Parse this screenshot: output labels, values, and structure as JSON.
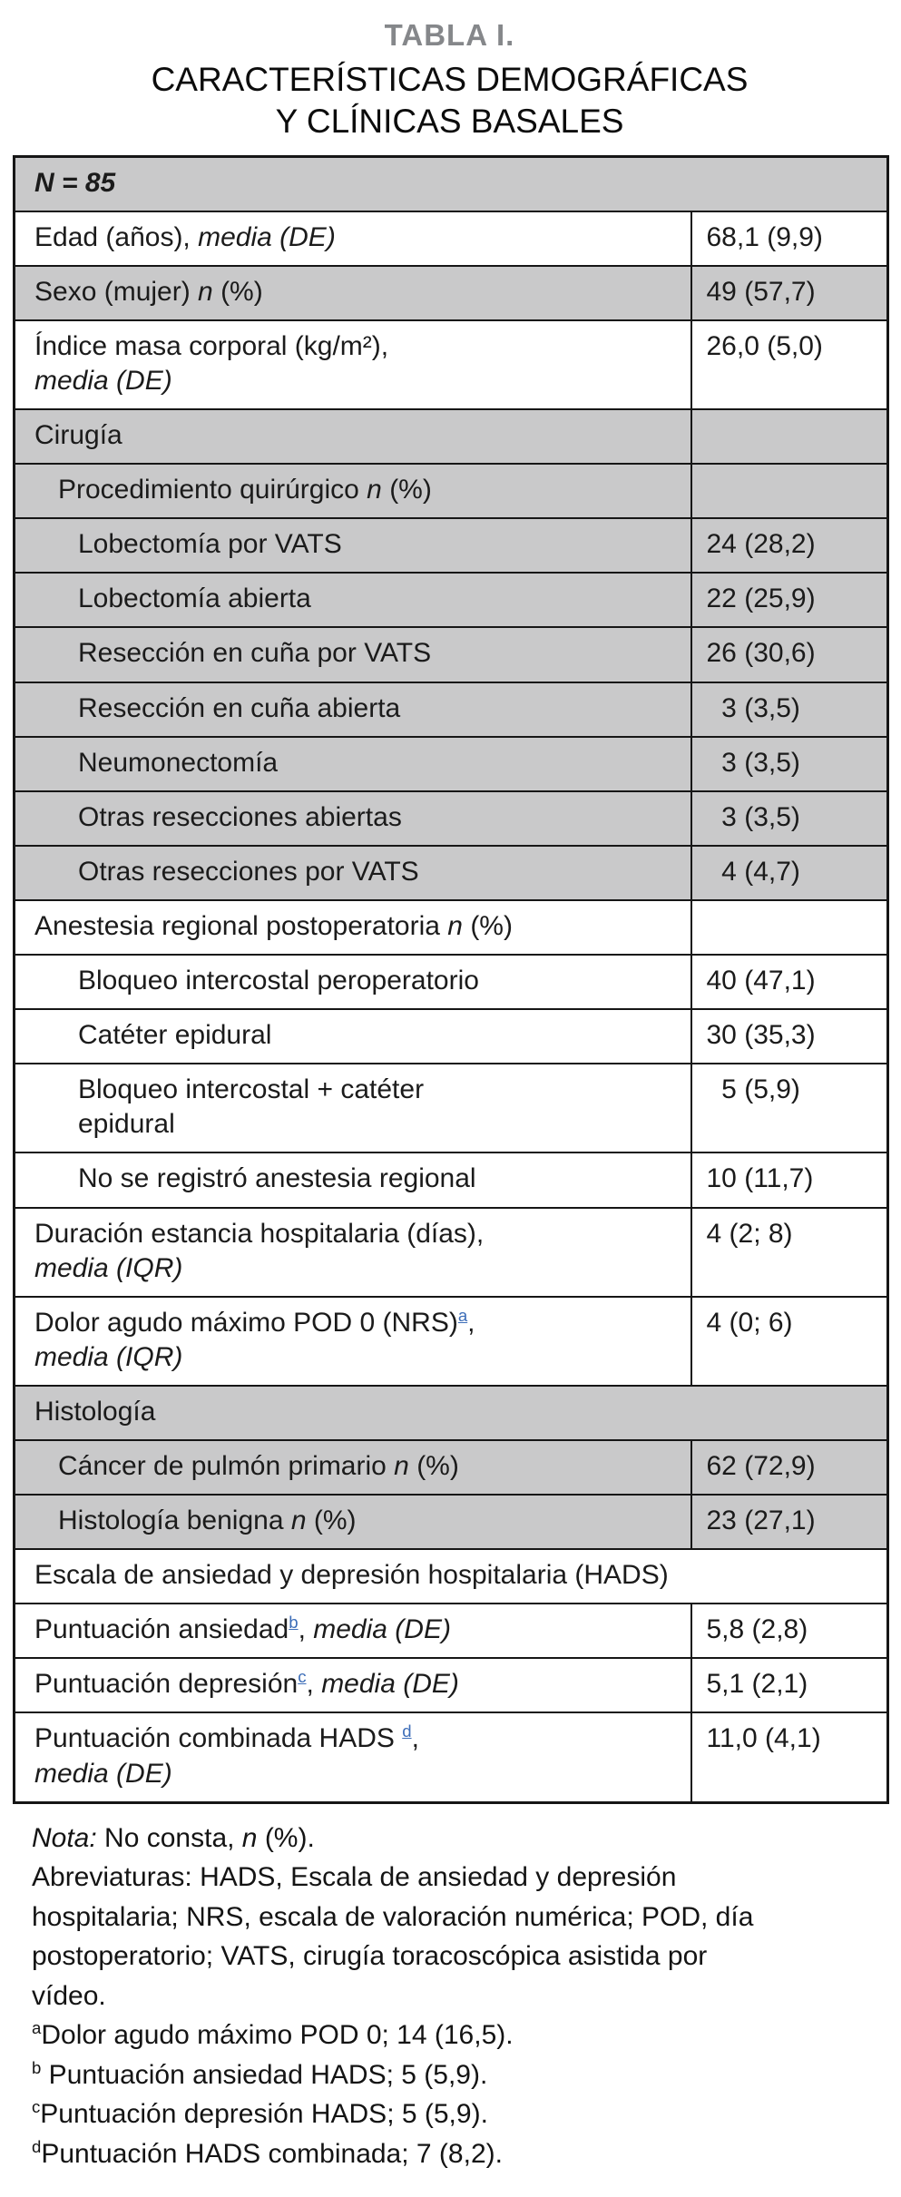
{
  "header": {
    "table_label": "TABLA I.",
    "title_line1": "CARACTERÍSTICAS DEMOGRÁFICAS",
    "title_line2": "Y CLÍNICAS BASALES"
  },
  "colors": {
    "row_gray": "#c9c9ca",
    "border_black": "#161616",
    "title_gray": "#85878a",
    "footnote_link_blue": "#3c6db8"
  },
  "table": {
    "rows": [
      {
        "bg": "gray",
        "indent": 0,
        "colspan": true,
        "label": [
          {
            "t": "N = 85",
            "b": true,
            "i": true
          }
        ]
      },
      {
        "bg": "white",
        "indent": 0,
        "label": [
          {
            "t": "Edad (años), "
          },
          {
            "t": "media (DE)",
            "i": true
          }
        ],
        "value": "68,1 (9,9)"
      },
      {
        "bg": "gray",
        "indent": 0,
        "label": [
          {
            "t": "Sexo (mujer) "
          },
          {
            "t": "n",
            "i": true
          },
          {
            "t": " (%)"
          }
        ],
        "value": "49 (57,7)"
      },
      {
        "bg": "white",
        "indent": 0,
        "label": [
          {
            "t": "Índice masa corporal (kg/m²),\n"
          },
          {
            "t": "media (DE)",
            "i": true
          }
        ],
        "value": "26,0 (5,0)"
      },
      {
        "bg": "gray",
        "indent": 0,
        "label": [
          {
            "t": "Cirugía"
          }
        ],
        "value": ""
      },
      {
        "bg": "gray",
        "indent": 1,
        "label": [
          {
            "t": "Procedimiento quirúrgico "
          },
          {
            "t": "n",
            "i": true
          },
          {
            "t": " (%)"
          }
        ],
        "value": ""
      },
      {
        "bg": "gray",
        "indent": 2,
        "label": [
          {
            "t": "Lobectomía por VATS"
          }
        ],
        "value": "24 (28,2)"
      },
      {
        "bg": "gray",
        "indent": 2,
        "label": [
          {
            "t": "Lobectomía abierta"
          }
        ],
        "value": "22 (25,9)"
      },
      {
        "bg": "gray",
        "indent": 2,
        "label": [
          {
            "t": "Resección en cuña por VATS"
          }
        ],
        "value": "26 (30,6)"
      },
      {
        "bg": "gray",
        "indent": 2,
        "label": [
          {
            "t": "Resección en cuña abierta"
          }
        ],
        "value": " 3 (3,5)"
      },
      {
        "bg": "gray",
        "indent": 2,
        "label": [
          {
            "t": "Neumonectomía"
          }
        ],
        "value": " 3 (3,5)"
      },
      {
        "bg": "gray",
        "indent": 2,
        "label": [
          {
            "t": "Otras resecciones abiertas"
          }
        ],
        "value": " 3 (3,5)"
      },
      {
        "bg": "gray",
        "indent": 2,
        "label": [
          {
            "t": "Otras resecciones por VATS"
          }
        ],
        "value": " 4 (4,7)"
      },
      {
        "bg": "white",
        "indent": 0,
        "label": [
          {
            "t": "Anestesia regional postoperatoria "
          },
          {
            "t": "n",
            "i": true
          },
          {
            "t": " (%)"
          }
        ],
        "value": ""
      },
      {
        "bg": "white",
        "indent": 2,
        "label": [
          {
            "t": "Bloqueo intercostal peroperatorio"
          }
        ],
        "value": "40 (47,1)"
      },
      {
        "bg": "white",
        "indent": 2,
        "label": [
          {
            "t": "Catéter epidural"
          }
        ],
        "value": "30 (35,3)"
      },
      {
        "bg": "white",
        "indent": 2,
        "label": [
          {
            "t": "Bloqueo intercostal + catéter\nepidural"
          }
        ],
        "value": " 5 (5,9)"
      },
      {
        "bg": "white",
        "indent": 2,
        "label": [
          {
            "t": "No se registró anestesia regional"
          }
        ],
        "value": "10 (11,7)"
      },
      {
        "bg": "white",
        "indent": 0,
        "label": [
          {
            "t": "Duración estancia hospitalaria (días),\n"
          },
          {
            "t": "media (IQR)",
            "i": true
          }
        ],
        "value": "4 (2; 8)"
      },
      {
        "bg": "white",
        "indent": 0,
        "label": [
          {
            "t": "Dolor agudo máximo POD 0 (NRS)"
          },
          {
            "t": "a",
            "sup": true,
            "link": true
          },
          {
            "t": ",\n"
          },
          {
            "t": "media (IQR)",
            "i": true
          }
        ],
        "value": "4 (0; 6)"
      },
      {
        "bg": "gray",
        "indent": 0,
        "colspan": true,
        "label": [
          {
            "t": "Histología"
          }
        ]
      },
      {
        "bg": "gray",
        "indent": 1,
        "label": [
          {
            "t": "Cáncer de pulmón primario "
          },
          {
            "t": "n",
            "i": true
          },
          {
            "t": " (%)"
          }
        ],
        "value": "62 (72,9)"
      },
      {
        "bg": "gray",
        "indent": 1,
        "label": [
          {
            "t": "Histología benigna "
          },
          {
            "t": "n",
            "i": true
          },
          {
            "t": " (%)"
          }
        ],
        "value": "23 (27,1)"
      },
      {
        "bg": "white",
        "indent": 0,
        "colspan": true,
        "label": [
          {
            "t": "Escala de ansiedad y depresión hospitalaria (HADS)"
          }
        ]
      },
      {
        "bg": "white",
        "indent": 0,
        "label": [
          {
            "t": "Puntuación ansiedad"
          },
          {
            "t": "b",
            "sup": true,
            "link": true
          },
          {
            "t": ", "
          },
          {
            "t": "media (DE)",
            "i": true
          }
        ],
        "value": "5,8 (2,8)"
      },
      {
        "bg": "white",
        "indent": 0,
        "label": [
          {
            "t": "Puntuación depresión"
          },
          {
            "t": "c",
            "sup": true,
            "link": true
          },
          {
            "t": ", "
          },
          {
            "t": "media (DE)",
            "i": true
          }
        ],
        "value": "5,1 (2,1)"
      },
      {
        "bg": "white",
        "indent": 0,
        "label": [
          {
            "t": "Puntuación combinada HADS "
          },
          {
            "t": "d",
            "sup": true,
            "link": true
          },
          {
            "t": ",\n"
          },
          {
            "t": "media (DE)",
            "i": true
          }
        ],
        "value": "11,0 (4,1)"
      }
    ]
  },
  "notes": [
    {
      "segments": [
        {
          "t": "Nota:",
          "i": true
        },
        {
          "t": " No consta, "
        },
        {
          "t": "n",
          "i": true
        },
        {
          "t": " (%)."
        }
      ]
    },
    {
      "segments": [
        {
          "t": "Abreviaturas: HADS, Escala de ansiedad y depresión hospitalaria; NRS, escala de valoración numérica; POD, día postoperatorio; VATS, cirugía toracoscópica asistida por vídeo."
        }
      ]
    },
    {
      "segments": [
        {
          "t": "a",
          "sup": true
        },
        {
          "t": "Dolor agudo máximo POD 0; 14 (16,5)."
        }
      ]
    },
    {
      "segments": [
        {
          "t": "b",
          "sup": true
        },
        {
          "t": " Puntuación ansiedad HADS; 5 (5,9)."
        }
      ]
    },
    {
      "segments": [
        {
          "t": "c",
          "sup": true
        },
        {
          "t": "Puntuación depresión HADS; 5 (5,9)."
        }
      ]
    },
    {
      "segments": [
        {
          "t": "d",
          "sup": true
        },
        {
          "t": "Puntuación HADS combinada; 7 (8,2)."
        }
      ]
    }
  ]
}
